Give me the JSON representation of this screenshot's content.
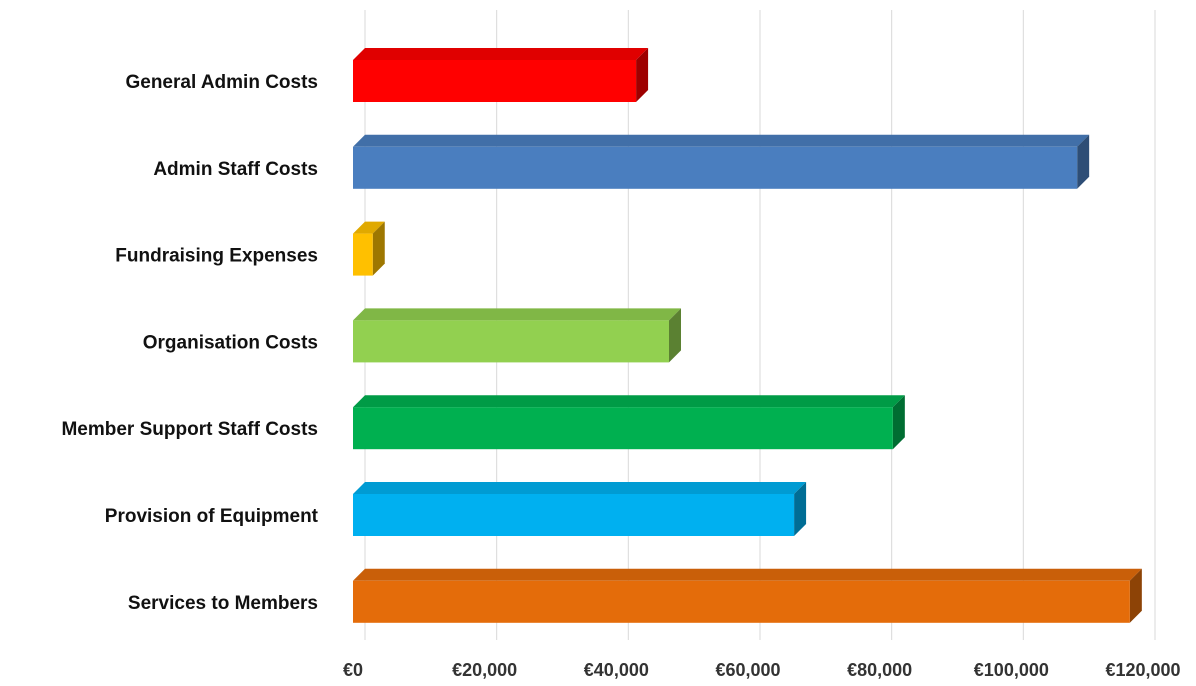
{
  "chart_data": {
    "type": "bar",
    "orientation": "horizontal",
    "style": "3d",
    "title": "",
    "xlabel": "",
    "ylabel": "",
    "categories": [
      "General Admin Costs",
      "Admin Staff Costs",
      "Fundraising Expenses",
      "Organisation Costs",
      "Member Support Staff Costs",
      "Provision of Equipment",
      "Services to Members"
    ],
    "values": [
      43000,
      110000,
      3000,
      48000,
      82000,
      67000,
      118000
    ],
    "colors": [
      "#ff0000",
      "#4a7ebf",
      "#ffc000",
      "#92d050",
      "#00b050",
      "#00b0f0",
      "#e46c0a"
    ],
    "xlim": [
      0,
      120000
    ],
    "xticks": [
      0,
      20000,
      40000,
      60000,
      80000,
      100000,
      120000
    ],
    "xtick_labels": [
      "€0",
      "€20,000",
      "€40,000",
      "€60,000",
      "€80,000",
      "€100,000",
      "€120,000"
    ],
    "grid": "vertical",
    "legend": "none"
  }
}
